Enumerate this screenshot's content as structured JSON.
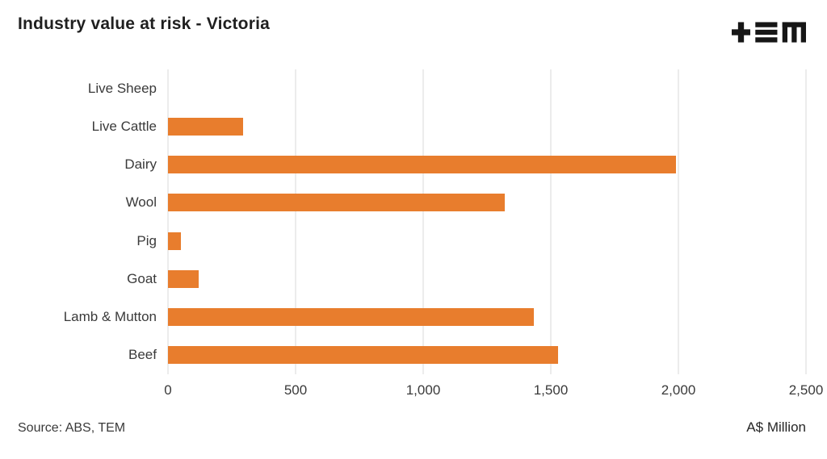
{
  "header": {
    "logo_name": "TEM"
  },
  "chart_data": {
    "type": "bar",
    "orientation": "horizontal",
    "title": "Industry value at risk - Victoria",
    "categories": [
      "Live Sheep",
      "Live Cattle",
      "Dairy",
      "Wool",
      "Pig",
      "Goat",
      "Lamb & Mutton",
      "Beef"
    ],
    "values": [
      0,
      295,
      1990,
      1320,
      50,
      120,
      1435,
      1530
    ],
    "xlabel": "A$ Million",
    "ylabel": "",
    "xlim": [
      0,
      2500
    ],
    "xticks": [
      0,
      500,
      1000,
      1500,
      2000,
      2500
    ],
    "xtick_labels": [
      "0",
      "500",
      "1,000",
      "1,500",
      "2,000",
      "2,500"
    ],
    "bar_color": "#e87d2d",
    "gridline_color": "#d9d9d9",
    "grid": true,
    "legend": false
  },
  "footer": {
    "source": "Source: ABS, TEM"
  }
}
